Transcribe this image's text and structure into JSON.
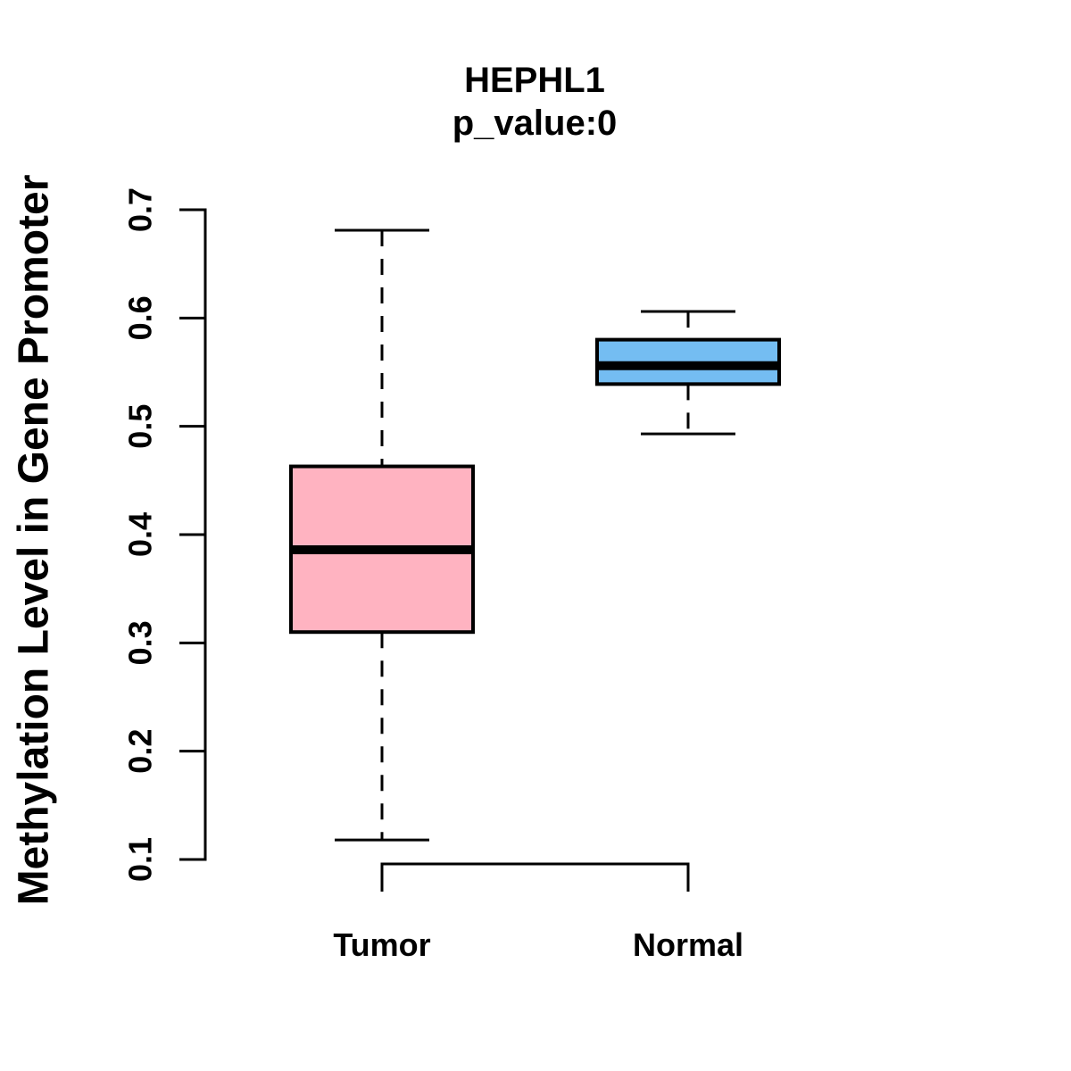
{
  "chart_data": {
    "type": "boxplot",
    "title": "HEPHL1",
    "subtitle": "p_value:0",
    "ylabel": "Methylation Level in Gene Promoter",
    "xlabel": "",
    "ylim": [
      0.1,
      0.7
    ],
    "yticks": [
      "0.1",
      "0.2",
      "0.3",
      "0.4",
      "0.5",
      "0.6",
      "0.7"
    ],
    "grid": false,
    "legend": "none",
    "background_color": "#FFFFFF",
    "stroke_color": "#000000",
    "categories": [
      "Tumor",
      "Normal"
    ],
    "groups": [
      {
        "label": "Tumor",
        "fill_color": "#FFB3C1",
        "stats": {
          "whisker_low": 0.118,
          "q1": 0.31,
          "median": 0.386,
          "q3": 0.463,
          "whisker_high": 0.681
        }
      },
      {
        "label": "Normal",
        "fill_color": "#74BDF2",
        "stats": {
          "whisker_low": 0.493,
          "q1": 0.539,
          "median": 0.556,
          "q3": 0.58,
          "whisker_high": 0.606
        }
      }
    ]
  }
}
